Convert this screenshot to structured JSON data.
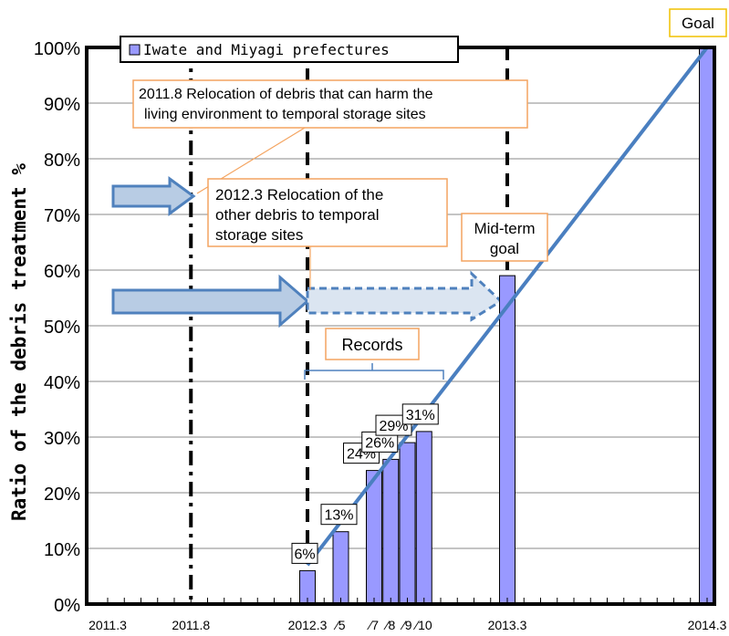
{
  "chart_data": {
    "type": "bar",
    "ylabel": "Ratio of the debris treatment %",
    "ylim": [
      0,
      100
    ],
    "y_ticks": [
      "0%",
      "10%",
      "20%",
      "30%",
      "40%",
      "50%",
      "60%",
      "70%",
      "80%",
      "90%",
      "100%"
    ],
    "x_tick_labels": [
      {
        "label": "2011.3",
        "month": 0
      },
      {
        "label": "2011.8",
        "month": 5
      },
      {
        "label": "2012.3",
        "month": 12
      },
      {
        "label": "∕5",
        "month": 14
      },
      {
        "label": "∕7",
        "month": 16
      },
      {
        "label": "∕8",
        "month": 17
      },
      {
        "label": "∕9",
        "month": 18
      },
      {
        "label": "∕10",
        "month": 19
      },
      {
        "label": "2013.3",
        "month": 24
      },
      {
        "label": "2014.3",
        "month": 36
      }
    ],
    "series": [
      {
        "name": "Iwate and Miyagi prefectures",
        "color": "#9999ff",
        "points": [
          {
            "x": "2012.3",
            "month": 12,
            "value": 6,
            "label": "6%"
          },
          {
            "x": "2012.5",
            "month": 14,
            "value": 13,
            "label": "13%"
          },
          {
            "x": "2012.7",
            "month": 16,
            "value": 24,
            "label": "24%"
          },
          {
            "x": "2012.8",
            "month": 17,
            "value": 26,
            "label": "26%"
          },
          {
            "x": "2012.9",
            "month": 18,
            "value": 29,
            "label": "29%"
          },
          {
            "x": "2012.10",
            "month": 19,
            "value": 31,
            "label": "31%"
          },
          {
            "x": "2013.3",
            "month": 24,
            "value": 59,
            "label": ""
          },
          {
            "x": "2014.3",
            "month": 36,
            "value": 100,
            "label": ""
          }
        ]
      }
    ],
    "trend_line": {
      "color": "#4a7fc0",
      "from": {
        "month": 12,
        "value": 7
      },
      "to": {
        "month": 36,
        "value": 100
      }
    },
    "vertical_lines": [
      {
        "month": 5,
        "style": "dash-dot"
      },
      {
        "month": 12,
        "style": "dashed"
      },
      {
        "month": 24,
        "style": "dashed"
      }
    ],
    "annotations": {
      "goal": "Goal",
      "midterm": "Mid-term goal",
      "records": "Records",
      "note_2011_8": "2011.8 Relocation of debris  that can harm the living environment to temporal storage sites",
      "note_2012_3": "2012.3 Relocation of the other debris to temporal storage sites"
    },
    "legend_position": "top-left",
    "grid": true,
    "colors": {
      "bar": "#9999ff",
      "trend": "#4a7fc0",
      "callout_border": "#f4a460",
      "goal_border": "#f0c000",
      "arrow_fill": "#b8cce4",
      "arrow_stroke": "#4f81bd"
    }
  }
}
